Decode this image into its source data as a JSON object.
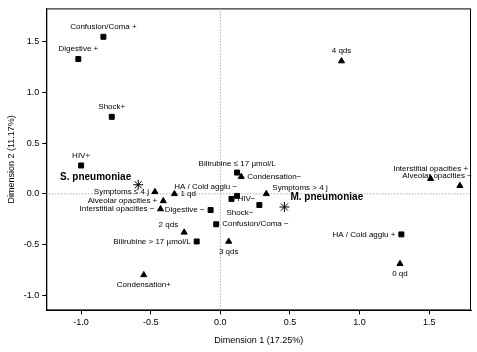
{
  "chart_data": {
    "type": "scatter",
    "x_label": "Dimension 1 (17.25%)",
    "y_label": "Dimension 2 (11.17%)",
    "color": "#000000",
    "xlim": [
      -1.25,
      1.8
    ],
    "ylim": [
      -1.15,
      1.83
    ],
    "xticks": [
      {
        "value": -1.0,
        "label": "-1.0"
      },
      {
        "value": -0.5,
        "label": "-0.5"
      },
      {
        "value": 0,
        "label": "0.0"
      },
      {
        "value": 0.5,
        "label": "0.5"
      },
      {
        "value": 1.0,
        "label": "1.0"
      },
      {
        "value": 1.5,
        "label": "1.5"
      }
    ],
    "yticks": [
      {
        "value": -1.0,
        "label": "-1.0"
      },
      {
        "value": -0.5,
        "label": "-0.5"
      },
      {
        "value": 0,
        "label": "0.0"
      },
      {
        "value": 0.5,
        "label": "0.5"
      },
      {
        "value": 1.0,
        "label": "1.0"
      },
      {
        "value": 1.5,
        "label": "1.5"
      }
    ],
    "points": [
      {
        "label": "Confusion/Coma +",
        "x": -0.84,
        "y": 1.55,
        "marker": "square"
      },
      {
        "label": "Digestive +",
        "x": -1.02,
        "y": 1.33,
        "marker": "square"
      },
      {
        "label": "4 qds",
        "x": 0.87,
        "y": 1.31,
        "marker": "triangle"
      },
      {
        "label": "Shock+",
        "x": -0.78,
        "y": 0.76,
        "marker": "square"
      },
      {
        "label": "HIV+",
        "x": -1.0,
        "y": 0.28,
        "marker": "square"
      },
      {
        "label": "Interstitial opacities +",
        "x": 1.51,
        "y": 0.15,
        "marker": "triangle"
      },
      {
        "label": "Alveolar opacities −",
        "x": 1.72,
        "y": 0.08,
        "marker": "triangle"
      },
      {
        "label": "S. pneumoniae",
        "x": -0.59,
        "y": 0.09,
        "marker": "star"
      },
      {
        "label": "Bilirubine ≤ 17 µmol/L",
        "x": 0.12,
        "y": 0.21,
        "marker": "square"
      },
      {
        "label": "Condensation−",
        "x": 0.15,
        "y": 0.17,
        "marker": "triangle"
      },
      {
        "label": "HA / Cold agglu −",
        "x": 0.12,
        "y": -0.02,
        "marker": "square"
      },
      {
        "label": "Symptoms > 4 j",
        "x": 0.33,
        "y": 0.0,
        "marker": "triangle"
      },
      {
        "label": "Symptoms ≤ 4 j",
        "x": -0.47,
        "y": 0.02,
        "marker": "triangle"
      },
      {
        "label": "1 qd",
        "x": -0.33,
        "y": 0.0,
        "marker": "triangle"
      },
      {
        "label": "HIV−",
        "x": 0.08,
        "y": -0.05,
        "marker": "square"
      },
      {
        "label": "Alveolar opacities +",
        "x": -0.41,
        "y": -0.07,
        "marker": "triangle"
      },
      {
        "label": "Digestive −",
        "x": -0.07,
        "y": -0.16,
        "marker": "square"
      },
      {
        "label": "Shock−",
        "x": 0.28,
        "y": -0.11,
        "marker": "square"
      },
      {
        "label": "M. pneumoniae",
        "x": 0.46,
        "y": -0.13,
        "marker": "star"
      },
      {
        "label": "Interstitial opacities −",
        "x": -0.43,
        "y": -0.15,
        "marker": "triangle"
      },
      {
        "label": "Confusion/Coma −",
        "x": -0.03,
        "y": -0.3,
        "marker": "square"
      },
      {
        "label": "2 qds",
        "x": -0.26,
        "y": -0.38,
        "marker": "triangle"
      },
      {
        "label": "Bilirubine > 17 µmol/L",
        "x": -0.17,
        "y": -0.47,
        "marker": "square"
      },
      {
        "label": "3 qds",
        "x": 0.06,
        "y": -0.47,
        "marker": "triangle"
      },
      {
        "label": "HA / Cold agglu +",
        "x": 1.3,
        "y": -0.4,
        "marker": "square"
      },
      {
        "label": "0 qd",
        "x": 1.29,
        "y": -0.69,
        "marker": "triangle"
      },
      {
        "label": "Condensation+",
        "x": -0.55,
        "y": -0.8,
        "marker": "triangle"
      }
    ]
  }
}
